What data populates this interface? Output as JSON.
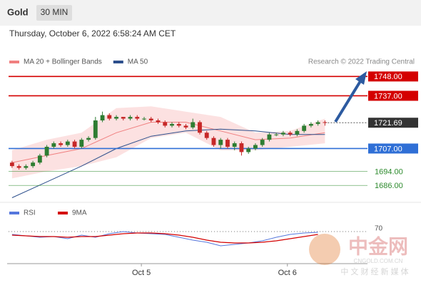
{
  "header": {
    "symbol": "Gold",
    "interval": "30 MIN",
    "timestamp": "Thursday, October 6, 2022 6:58:24 AM CET"
  },
  "chart_data": {
    "type": "candlestick",
    "legend": [
      {
        "name": "MA 20 + Bollinger Bands",
        "color": "#f08080"
      },
      {
        "name": "MA 50",
        "color": "#2c4f8c"
      }
    ],
    "source": "Research © 2022 Trading Central",
    "ylim": [
      1678,
      1753
    ],
    "xlim": [
      -0.5,
      46.5
    ],
    "xticks": [
      {
        "value": 18.6,
        "label": "Oct 5"
      },
      {
        "value": 39.6,
        "label": "Oct 6"
      }
    ],
    "up_color": "#2e7d32",
    "down_color": "#c62828",
    "open": [
      1699,
      1697,
      1696,
      1697,
      1699,
      1703,
      1708,
      1710,
      1709,
      1711,
      1708,
      1712,
      1713,
      1723,
      1726,
      1724,
      1725,
      1724,
      1725,
      1724,
      1724,
      1723,
      1722,
      1720,
      1721,
      1720,
      1719,
      1722,
      1716,
      1713,
      1709,
      1712,
      1708,
      1710,
      1705,
      1707,
      1709,
      1712,
      1715,
      1715,
      1716,
      1715,
      1717,
      1720,
      1721,
      1722
    ],
    "high": [
      1700,
      1698,
      1698,
      1700,
      1704,
      1709,
      1711,
      1711,
      1712,
      1712,
      1713,
      1714,
      1725,
      1728,
      1727,
      1726,
      1725,
      1726,
      1726,
      1725,
      1725,
      1724,
      1723,
      1722,
      1722,
      1721,
      1724,
      1723,
      1717,
      1714,
      1713,
      1713,
      1711,
      1711,
      1708,
      1710,
      1713,
      1716,
      1716,
      1717,
      1717,
      1718,
      1721,
      1722,
      1723,
      1723
    ],
    "low": [
      1696,
      1695,
      1695,
      1696,
      1698,
      1702,
      1707,
      1708,
      1708,
      1707,
      1707,
      1711,
      1712,
      1722,
      1723,
      1723,
      1723,
      1723,
      1723,
      1723,
      1722,
      1721,
      1719,
      1719,
      1719,
      1718,
      1718,
      1715,
      1712,
      1708,
      1707,
      1707,
      1706,
      1703,
      1704,
      1706,
      1708,
      1711,
      1714,
      1714,
      1714,
      1714,
      1716,
      1719,
      1720,
      1720
    ],
    "close": [
      1697,
      1696,
      1697,
      1699,
      1703,
      1708,
      1710,
      1709,
      1711,
      1708,
      1712,
      1713,
      1723,
      1726,
      1724,
      1725,
      1724,
      1725,
      1724,
      1724,
      1723,
      1722,
      1720,
      1721,
      1720,
      1719,
      1722,
      1716,
      1713,
      1709,
      1712,
      1708,
      1710,
      1705,
      1707,
      1709,
      1712,
      1715,
      1715,
      1716,
      1715,
      1717,
      1720,
      1721,
      1722,
      1721.69
    ],
    "bands": {
      "x": [
        0,
        5,
        10,
        15,
        20,
        25,
        30,
        35,
        40,
        45
      ],
      "upper": [
        1706,
        1712,
        1716,
        1730,
        1731,
        1728,
        1725,
        1716,
        1717,
        1724
      ],
      "middle": [
        1699,
        1703,
        1707,
        1716,
        1722,
        1722,
        1717,
        1712,
        1713,
        1716
      ],
      "lower": [
        1690,
        1694,
        1697,
        1702,
        1713,
        1716,
        1706,
        1706,
        1708,
        1710
      ],
      "ma50": [
        1679,
        1688,
        1697,
        1707,
        1714,
        1717,
        1718,
        1717,
        1715,
        1715
      ]
    },
    "levels": [
      {
        "value": 1748,
        "label": "1748.00",
        "color": "#d40000",
        "boxed": true
      },
      {
        "value": 1737,
        "label": "1737.00",
        "color": "#d40000",
        "boxed": true
      },
      {
        "value": 1721.69,
        "label": "1721.69",
        "color": "#333333",
        "boxed": true,
        "dotted": true
      },
      {
        "value": 1707,
        "label": "1707.00",
        "color": "#2f6fd6",
        "boxed": true
      },
      {
        "value": 1694,
        "label": "1694.00",
        "color": "#2e8b2e",
        "boxed": false
      },
      {
        "value": 1686,
        "label": "1686.00",
        "color": "#2e8b2e",
        "boxed": false
      }
    ],
    "rsi": {
      "legend": [
        {
          "name": "RSI",
          "color": "#5577dd"
        },
        {
          "name": "9MA",
          "color": "#d40000"
        }
      ],
      "ylim": [
        20,
        95
      ],
      "yticks": [
        70
      ],
      "x": [
        0,
        2,
        4,
        6,
        8,
        10,
        12,
        14,
        16,
        18,
        20,
        22,
        24,
        26,
        28,
        30,
        32,
        34,
        36,
        38,
        40,
        42,
        44
      ],
      "rsi": [
        66,
        64,
        62,
        63,
        60,
        65,
        62,
        67,
        70,
        68,
        67,
        66,
        62,
        58,
        55,
        50,
        52,
        54,
        57,
        62,
        66,
        68,
        69
      ],
      "ma": [
        65,
        64,
        63,
        63,
        62,
        63,
        63,
        65,
        67,
        68,
        68,
        67,
        65,
        62,
        58,
        55,
        54,
        54,
        55,
        57,
        60,
        63,
        66
      ]
    }
  },
  "watermark": {
    "name": "中金网",
    "site": "CNGOLD.COM.CN",
    "slogan": "中 文 财 经 新 媒 体"
  }
}
